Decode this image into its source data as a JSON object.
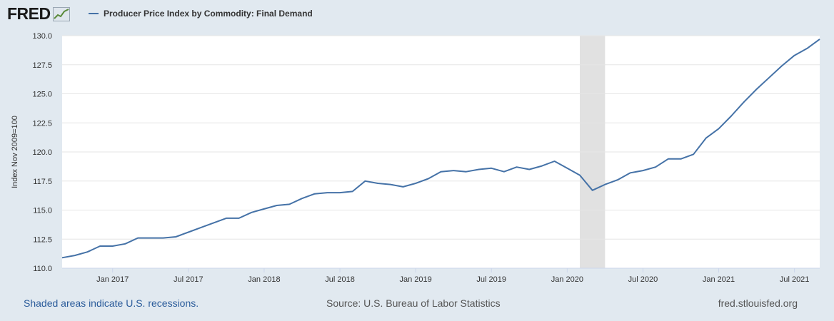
{
  "header": {
    "logo_text": "FRED",
    "legend_label": "Producer Price Index by Commodity: Final Demand"
  },
  "footer": {
    "recession_note": "Shaded areas indicate U.S. recessions.",
    "source": "Source: U.S. Bureau of Labor Statistics",
    "site": "fred.stlouisfed.org"
  },
  "colors": {
    "series": "#4572a7",
    "recession": "#e1e1e1",
    "background": "#e1e9f0",
    "plot": "#ffffff"
  },
  "chart_data": {
    "type": "line",
    "title": "",
    "xlabel": "",
    "ylabel": "Index Nov 2009=100",
    "ylim": [
      110.0,
      130.0
    ],
    "xlim": [
      "2016-09",
      "2021-09"
    ],
    "y_ticks": [
      "110.0",
      "112.5",
      "115.0",
      "117.5",
      "120.0",
      "122.5",
      "125.0",
      "127.5",
      "130.0"
    ],
    "x_ticks": [
      {
        "date": "2017-01",
        "label": "Jan 2017"
      },
      {
        "date": "2017-07",
        "label": "Jul 2017"
      },
      {
        "date": "2018-01",
        "label": "Jan 2018"
      },
      {
        "date": "2018-07",
        "label": "Jul 2018"
      },
      {
        "date": "2019-01",
        "label": "Jan 2019"
      },
      {
        "date": "2019-07",
        "label": "Jul 2019"
      },
      {
        "date": "2020-01",
        "label": "Jan 2020"
      },
      {
        "date": "2020-07",
        "label": "Jul 2020"
      },
      {
        "date": "2021-01",
        "label": "Jan 2021"
      },
      {
        "date": "2021-07",
        "label": "Jul 2021"
      }
    ],
    "recessions": [
      {
        "start": "2020-02",
        "end": "2020-04"
      }
    ],
    "grid": true,
    "series": [
      {
        "name": "Producer Price Index by Commodity: Final Demand",
        "x": [
          "2016-09",
          "2016-10",
          "2016-11",
          "2016-12",
          "2017-01",
          "2017-02",
          "2017-03",
          "2017-04",
          "2017-05",
          "2017-06",
          "2017-07",
          "2017-08",
          "2017-09",
          "2017-10",
          "2017-11",
          "2017-12",
          "2018-01",
          "2018-02",
          "2018-03",
          "2018-04",
          "2018-05",
          "2018-06",
          "2018-07",
          "2018-08",
          "2018-09",
          "2018-10",
          "2018-11",
          "2018-12",
          "2019-01",
          "2019-02",
          "2019-03",
          "2019-04",
          "2019-05",
          "2019-06",
          "2019-07",
          "2019-08",
          "2019-09",
          "2019-10",
          "2019-11",
          "2019-12",
          "2020-01",
          "2020-02",
          "2020-03",
          "2020-04",
          "2020-05",
          "2020-06",
          "2020-07",
          "2020-08",
          "2020-09",
          "2020-10",
          "2020-11",
          "2020-12",
          "2021-01",
          "2021-02",
          "2021-03",
          "2021-04",
          "2021-05",
          "2021-06",
          "2021-07",
          "2021-08",
          "2021-09"
        ],
        "values": [
          110.9,
          111.1,
          111.4,
          111.9,
          111.9,
          112.1,
          112.6,
          112.6,
          112.6,
          112.7,
          113.1,
          113.5,
          113.9,
          114.3,
          114.3,
          114.8,
          115.1,
          115.4,
          115.5,
          116.0,
          116.4,
          116.5,
          116.5,
          116.6,
          117.5,
          117.3,
          117.2,
          117.0,
          117.3,
          117.7,
          118.3,
          118.4,
          118.3,
          118.5,
          118.6,
          118.3,
          118.7,
          118.5,
          118.8,
          119.2,
          118.6,
          118.0,
          116.7,
          117.2,
          117.6,
          118.2,
          118.4,
          118.7,
          119.4,
          119.4,
          119.8,
          121.2,
          122.0,
          123.1,
          124.3,
          125.4,
          126.4,
          127.4,
          128.3,
          128.9,
          129.7
        ]
      }
    ]
  }
}
